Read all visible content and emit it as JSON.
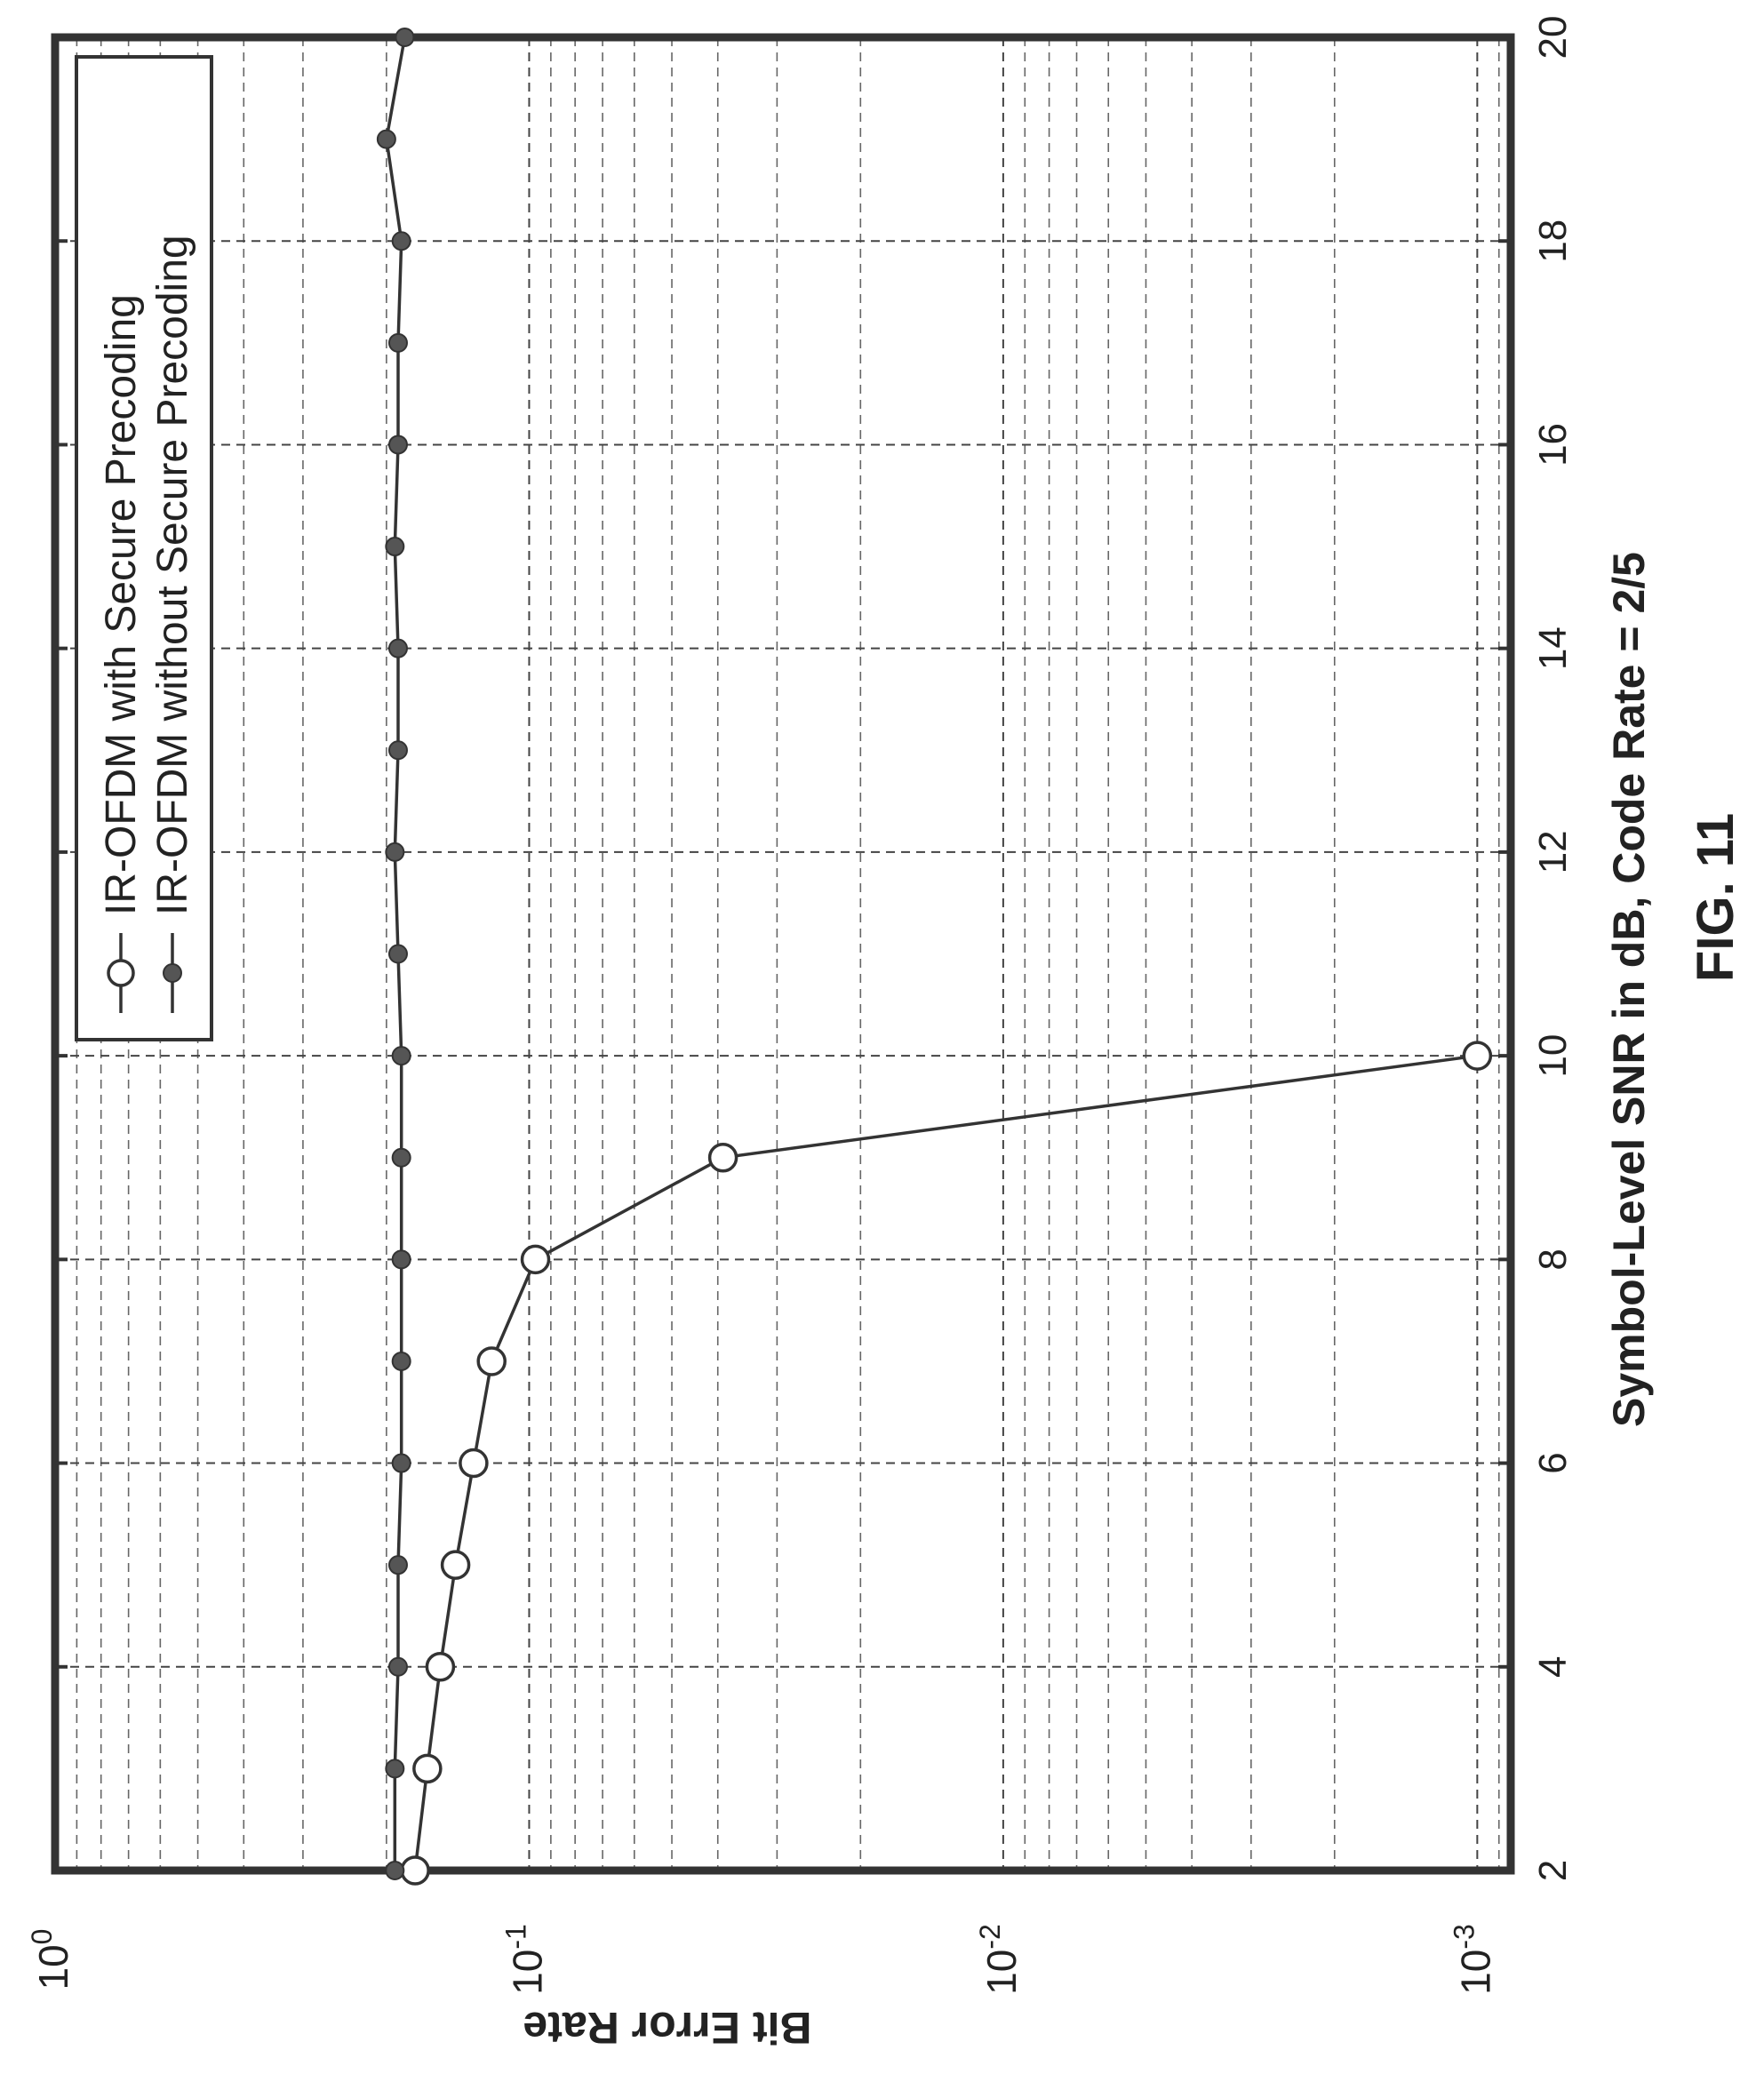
{
  "chart_data": {
    "type": "line",
    "orientation": "rotated 90° counter-clockwise (figure printed sideways)",
    "xlabel": "Symbol-Level SNR in dB, Code Rate = 2/5",
    "ylabel": "Bit Error Rate",
    "figure_label": "FIG. 11",
    "x_ticks": [
      "2",
      "4",
      "6",
      "8",
      "10",
      "12",
      "14",
      "16",
      "18",
      "20"
    ],
    "xlim": [
      2,
      20
    ],
    "y_scale": "log",
    "ylim": [
      0.00085,
      1
    ],
    "y_ticks": [
      {
        "base": "10",
        "exp": "0",
        "value": 1
      },
      {
        "base": "10",
        "exp": "-1",
        "value": 0.1
      },
      {
        "base": "10",
        "exp": "-2",
        "value": 0.01
      },
      {
        "base": "10",
        "exp": "-3",
        "value": 0.001
      }
    ],
    "grid": "on (dashed, major and minor)",
    "legend_position": "top-left (upper end of the rotated plot)",
    "series": [
      {
        "name": "IR-OFDM with Secure Precoding",
        "marker": "open-circle",
        "x": [
          2,
          3,
          4,
          5,
          6,
          7,
          8,
          9,
          10
        ],
        "y": [
          0.174,
          0.164,
          0.154,
          0.143,
          0.131,
          0.12,
          0.097,
          0.039,
          0.001
        ]
      },
      {
        "name": "IR-OFDM without Secure Precoding",
        "marker": "filled-circle",
        "x": [
          2,
          3,
          4,
          5,
          6,
          7,
          8,
          9,
          10,
          11,
          12,
          13,
          14,
          15,
          16,
          17,
          18,
          19,
          20
        ],
        "y": [
          0.192,
          0.192,
          0.189,
          0.189,
          0.186,
          0.186,
          0.186,
          0.186,
          0.186,
          0.189,
          0.192,
          0.189,
          0.189,
          0.192,
          0.189,
          0.189,
          0.186,
          0.2,
          0.183
        ]
      }
    ]
  },
  "colors": {
    "line": "#333333",
    "marker_fill": "#555555",
    "background": "#ffffff"
  }
}
